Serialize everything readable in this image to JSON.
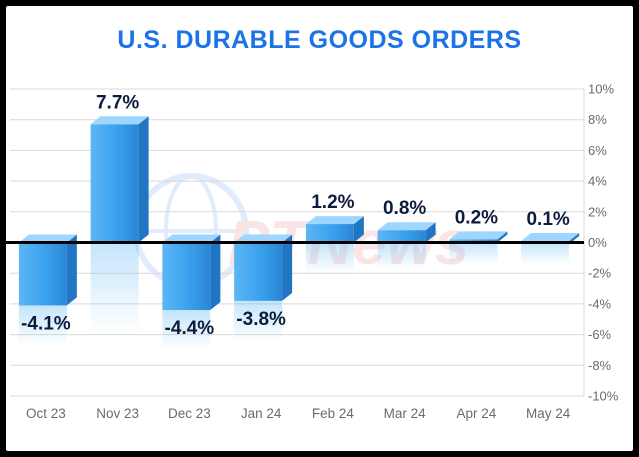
{
  "colors": {
    "title": "#1a73e8",
    "bar_front": "#3aa1ee",
    "bar_top": "#9fd6ff",
    "data_label": "#0d1b3e",
    "zero_line": "#000000"
  },
  "chart_data": {
    "type": "bar",
    "title": "U.S. DURABLE GOODS ORDERS",
    "xlabel": "",
    "ylabel": "",
    "categories": [
      "Oct 23",
      "Nov 23",
      "Dec 23",
      "Jan 24",
      "Feb 24",
      "Mar 24",
      "Apr 24",
      "May 24"
    ],
    "values": [
      -4.1,
      7.7,
      -4.4,
      -3.8,
      1.2,
      0.8,
      0.2,
      0.1
    ],
    "value_labels": [
      "-4.1%",
      "7.7%",
      "-4.4%",
      "-3.8%",
      "1.2%",
      "0.8%",
      "0.2%",
      "0.1%"
    ],
    "ylim": [
      -10,
      10
    ],
    "yticks": [
      10,
      8,
      6,
      4,
      2,
      0,
      -2,
      -4,
      -6,
      -8,
      -10
    ],
    "ytick_labels": [
      "10%",
      "8%",
      "6%",
      "4%",
      "2%",
      "0%",
      "-2%",
      "-4%",
      "-6%",
      "-8%",
      "-10%"
    ],
    "grid": true,
    "y_axis_position": "right",
    "legend": "none"
  },
  "watermark": {
    "text": "PTNews"
  }
}
